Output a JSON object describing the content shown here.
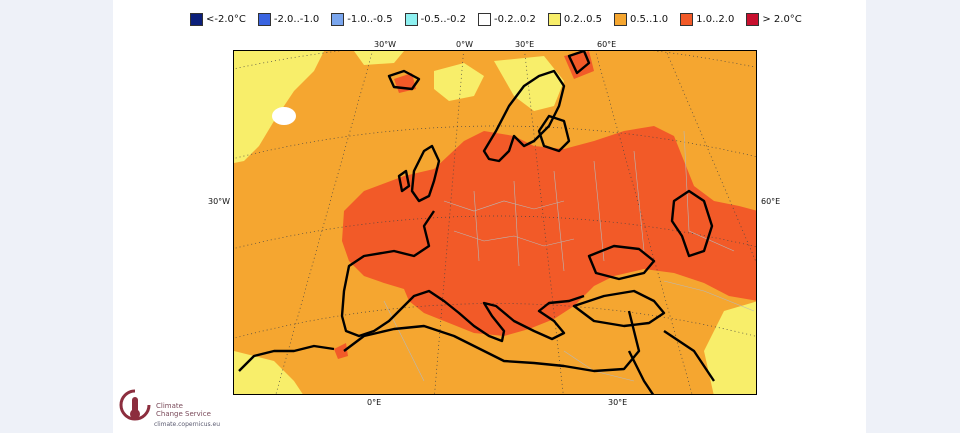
{
  "legend": [
    {
      "label": "<-2.0°C",
      "color": "#0b1f7a"
    },
    {
      "label": "-2.0..-1.0",
      "color": "#3a64e0"
    },
    {
      "label": "-1.0..-0.5",
      "color": "#7aa6ee"
    },
    {
      "label": "-0.5..-0.2",
      "color": "#8ef0f0"
    },
    {
      "label": "-0.2..0.2",
      "color": "#ffffff"
    },
    {
      "label": "0.2..0.5",
      "color": "#f8ee6a"
    },
    {
      "label": "0.5..1.0",
      "color": "#f5a630"
    },
    {
      "label": "1.0..2.0",
      "color": "#f25a28"
    },
    {
      "label": ">  2.0°C",
      "color": "#c8102e"
    }
  ],
  "top_ticks": [
    "30°W",
    "0°W",
    "30°E",
    "60°E"
  ],
  "left_tick": "30°W",
  "right_tick": "60°E",
  "bottom_ticks": [
    "0°E",
    "30°E"
  ],
  "logo": {
    "line1": "Climate",
    "line2": "Change Service",
    "url": "climate.copernicus.eu"
  }
}
